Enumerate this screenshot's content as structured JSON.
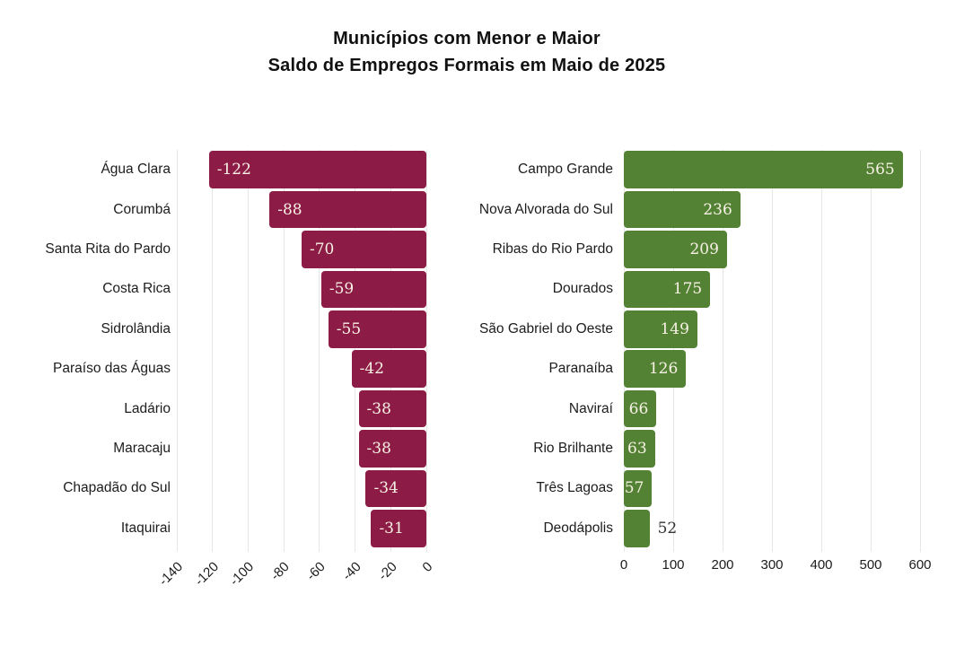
{
  "title": {
    "line1": "Municípios com Menor e Maior",
    "line2": "Saldo de Empregos Formais em Maio de 2025"
  },
  "colors": {
    "negative_bar": "#8C1B45",
    "positive_bar": "#548235",
    "gridline": "#E6E6E6",
    "category_label_text": "#1C1C1C",
    "tick_label_text": "#1C1C1C",
    "value_label_inside": "#F8F1E5",
    "value_label_outside": "#333333",
    "title_text": "#111111",
    "background": "#FFFFFF"
  },
  "chart_data": [
    {
      "type": "bar",
      "orientation": "horizontal",
      "panel": "menor-saldo",
      "categories": [
        "Água Clara",
        "Corumbá",
        "Santa Rita do Pardo",
        "Costa Rica",
        "Sidrolândia",
        "Paraíso das Águas",
        "Ladário",
        "Maracaju",
        "Chapadão do Sul",
        "Itaquirai"
      ],
      "values": [
        -122,
        -88,
        -70,
        -59,
        -55,
        -42,
        -38,
        -38,
        -34,
        -31
      ],
      "xlim": [
        -140,
        0
      ],
      "xticks": [
        -140,
        -120,
        -100,
        -80,
        -60,
        -40,
        -20,
        0
      ],
      "xlabel": "",
      "ylabel": "",
      "grid": true,
      "legend": "none",
      "tick_rotation_deg": 45,
      "value_labels_shown": true
    },
    {
      "type": "bar",
      "orientation": "horizontal",
      "panel": "maior-saldo",
      "categories": [
        "Campo Grande",
        "Nova Alvorada do Sul",
        "Ribas do Rio Pardo",
        "Dourados",
        "São Gabriel do Oeste",
        "Paranaíba",
        "Naviraí",
        "Rio Brilhante",
        "Três Lagoas",
        "Deodápolis"
      ],
      "values": [
        565,
        236,
        209,
        175,
        149,
        126,
        66,
        63,
        57,
        52
      ],
      "xlim": [
        0,
        600
      ],
      "xticks": [
        0,
        100,
        200,
        300,
        400,
        500,
        600
      ],
      "xlabel": "",
      "ylabel": "",
      "grid": true,
      "legend": "none",
      "tick_rotation_deg": 0,
      "value_labels_shown": true
    }
  ]
}
